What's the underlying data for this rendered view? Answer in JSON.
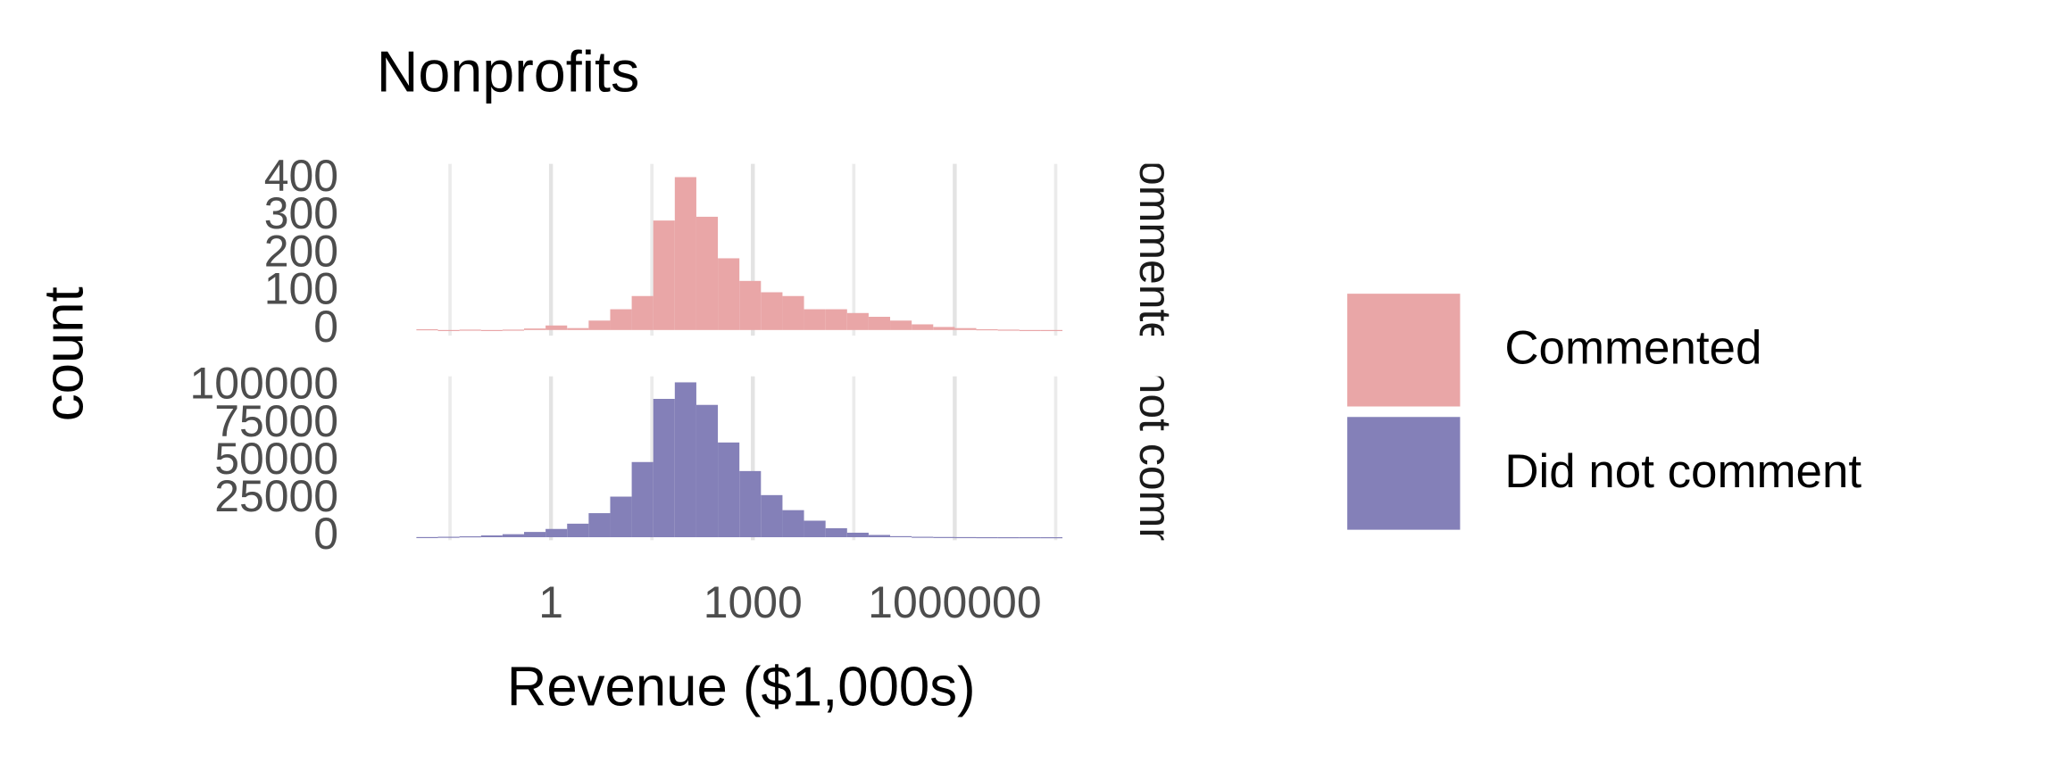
{
  "chart_data": {
    "type": "histogram",
    "title": "Nonprofits",
    "xlabel": "Revenue ($1,000s)",
    "ylabel": "count",
    "xscale": "log",
    "xlim": [
      0.00785,
      123000000
    ],
    "xticks": [
      1,
      1000,
      1000000
    ],
    "minor_xticks": [
      0.03162,
      31.62,
      31620,
      31620000
    ],
    "grid": true,
    "legend": "right",
    "bins": [
      0.01,
      0.02089,
      0.04365,
      0.0912,
      0.1905,
      0.3981,
      0.8318,
      1.738,
      3.631,
      7.586,
      15.85,
      33.11,
      69.18,
      144.5,
      302.0,
      631.0,
      1318,
      2754,
      5754,
      12020,
      25120,
      52480,
      109600,
      229100,
      478600,
      1000000,
      2089000,
      4365000,
      9120000,
      19050000,
      39810000
    ],
    "facets": [
      {
        "name": "Commented",
        "color": "#e9a6a7",
        "counts": [
          2,
          0,
          1,
          0,
          1,
          4,
          12,
          5,
          25,
          55,
          90,
          290,
          405,
          300,
          190,
          130,
          100,
          90,
          55,
          55,
          45,
          35,
          25,
          15,
          8,
          5,
          2,
          1,
          0,
          0
        ],
        "ylim": [
          -15,
          440
        ],
        "yticks": [
          0,
          100,
          200,
          300,
          400
        ]
      },
      {
        "name": "Did not comment",
        "color": "#8480b8",
        "counts": [
          100,
          300,
          600,
          1200,
          2000,
          3500,
          5500,
          9000,
          16000,
          27000,
          50000,
          92000,
          103000,
          88000,
          63000,
          44000,
          28000,
          18000,
          11000,
          6000,
          3000,
          1500,
          700,
          300,
          150,
          80,
          30,
          10,
          5,
          2
        ],
        "ylim": [
          -2000,
          107000
        ],
        "yticks": [
          0,
          25000,
          50000,
          75000,
          100000
        ]
      }
    ]
  }
}
